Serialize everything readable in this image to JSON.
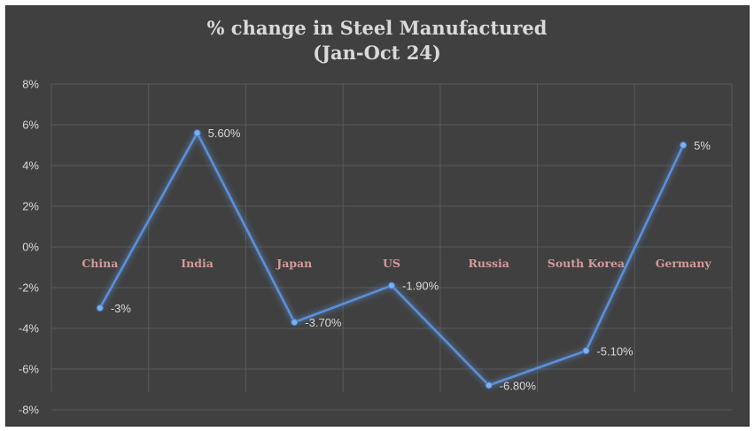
{
  "chart_data": {
    "type": "line",
    "title": "% change in Steel Manufactured",
    "subtitle": "(Jan-Oct 24)",
    "categories": [
      "China",
      "India",
      "Japan",
      "US",
      "Russia",
      "South Korea",
      "Germany"
    ],
    "values": [
      -3,
      5.6,
      -3.7,
      -1.9,
      -6.8,
      -5.1,
      5
    ],
    "data_labels": [
      "-3%",
      "5.60%",
      "-3.70%",
      "-1.90%",
      "-6.80%",
      "-5.10%",
      "5%"
    ],
    "yticks": [
      8,
      6,
      4,
      2,
      0,
      -2,
      -4,
      -6,
      -8
    ],
    "ytick_labels": [
      "8%",
      "6%",
      "4%",
      "2%",
      "0%",
      "-2%",
      "-4%",
      "-6%",
      "-8%"
    ],
    "ylim": [
      -8,
      8
    ],
    "grid": true,
    "colors": {
      "background": "#404040",
      "line": "#5b8fd6",
      "text": "#d9d9d9",
      "category_text": "#d49a9a",
      "grid": "#595959"
    }
  }
}
